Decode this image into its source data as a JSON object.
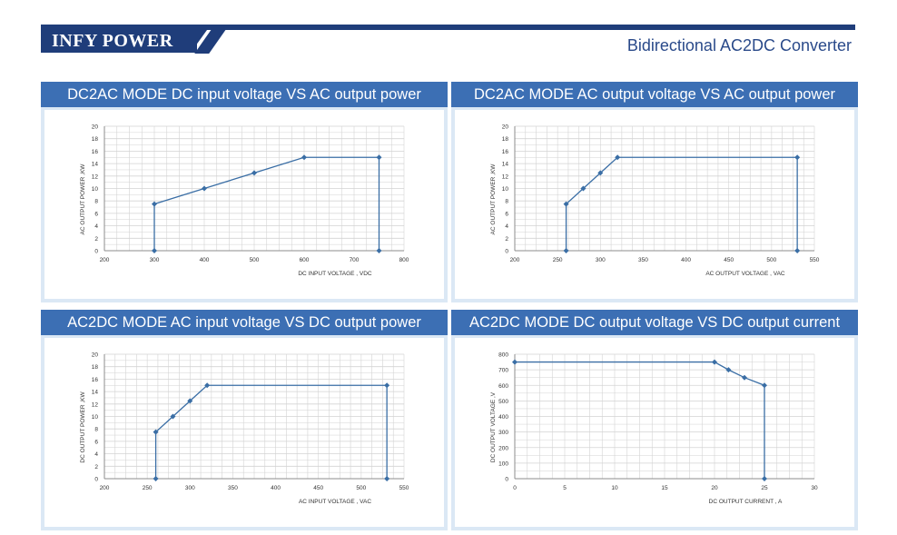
{
  "header": {
    "brand": "INFY POWER",
    "subtitle": "Bidirectional AC2DC Converter"
  },
  "colors": {
    "brand": "#1f3d7a",
    "title_bar": "#3c6fb4",
    "panel_bg": "#dbe8f5",
    "series": "#3a6ea5",
    "grid": "#d3d3d3"
  },
  "chart_data": [
    {
      "type": "scatter",
      "mode": "lines+markers",
      "title": "DC2AC MODE DC input voltage VS  AC output power",
      "xlabel": "DC INPUT VOLTAGE , VDC",
      "ylabel": "AC OUTPUT POWER ,KW",
      "xlim": [
        200,
        800
      ],
      "ylim": [
        0,
        20
      ],
      "xticks": [
        "200",
        "300",
        "400",
        "500",
        "600",
        "700",
        "800"
      ],
      "yticks": [
        "0",
        "2",
        "4",
        "6",
        "8",
        "10",
        "12",
        "14",
        "16",
        "18",
        "20"
      ],
      "x_minor_step": 25,
      "grid": true,
      "series": [
        {
          "x": [
            300,
            300,
            400,
            500,
            600,
            750,
            750
          ],
          "y": [
            0,
            7.5,
            10,
            12.5,
            15,
            15,
            0
          ]
        }
      ]
    },
    {
      "type": "scatter",
      "mode": "lines+markers",
      "title": "DC2AC MODE AC output voltage VS AC output power",
      "xlabel": "AC OUTPUT VOLTAGE , VAC",
      "ylabel": "AC OUTPUT POWER ,KW",
      "xlim": [
        200,
        550
      ],
      "ylim": [
        0,
        20
      ],
      "xticks": [
        "200",
        "250",
        "300",
        "350",
        "400",
        "450",
        "500",
        "550"
      ],
      "yticks": [
        "0",
        "2",
        "4",
        "6",
        "8",
        "10",
        "12",
        "14",
        "16",
        "18",
        "20"
      ],
      "x_minor_step": 12.5,
      "grid": true,
      "series": [
        {
          "x": [
            260,
            260,
            280,
            300,
            320,
            530,
            530
          ],
          "y": [
            0,
            7.5,
            10,
            12.5,
            15,
            15,
            0
          ]
        }
      ]
    },
    {
      "type": "scatter",
      "mode": "lines+markers",
      "title": "AC2DC MODE AC input voltage VS DC output power",
      "xlabel": "AC INPUT VOLTAGE , VAC",
      "ylabel": "DC OUTPUT POWER ,KW",
      "xlim": [
        200,
        550
      ],
      "ylim": [
        0,
        20
      ],
      "xticks": [
        "200",
        "250",
        "300",
        "350",
        "400",
        "450",
        "500",
        "550"
      ],
      "yticks": [
        "0",
        "2",
        "4",
        "6",
        "8",
        "10",
        "12",
        "14",
        "16",
        "18",
        "20"
      ],
      "x_minor_step": 12.5,
      "grid": true,
      "series": [
        {
          "x": [
            260,
            260,
            280,
            300,
            320,
            530,
            530
          ],
          "y": [
            0,
            7.5,
            10,
            12.5,
            15,
            15,
            0
          ]
        }
      ]
    },
    {
      "type": "scatter",
      "mode": "lines+markers",
      "title": "AC2DC MODE DC output voltage VS DC output current",
      "xlabel": "DC OUTPUT CURRENT , A",
      "ylabel": "DC OUTPUT VOLTAGE ,V",
      "xlim": [
        0,
        30
      ],
      "ylim": [
        0,
        800
      ],
      "xticks": [
        "0",
        "5",
        "10",
        "15",
        "20",
        "25",
        "30"
      ],
      "yticks": [
        "0",
        "100",
        "200",
        "300",
        "400",
        "500",
        "600",
        "700",
        "800"
      ],
      "x_minor_step": 1.25,
      "grid": true,
      "series": [
        {
          "x": [
            0,
            20,
            21.4,
            23,
            25,
            25
          ],
          "y": [
            750,
            750,
            700,
            650,
            600,
            0
          ]
        }
      ]
    }
  ]
}
